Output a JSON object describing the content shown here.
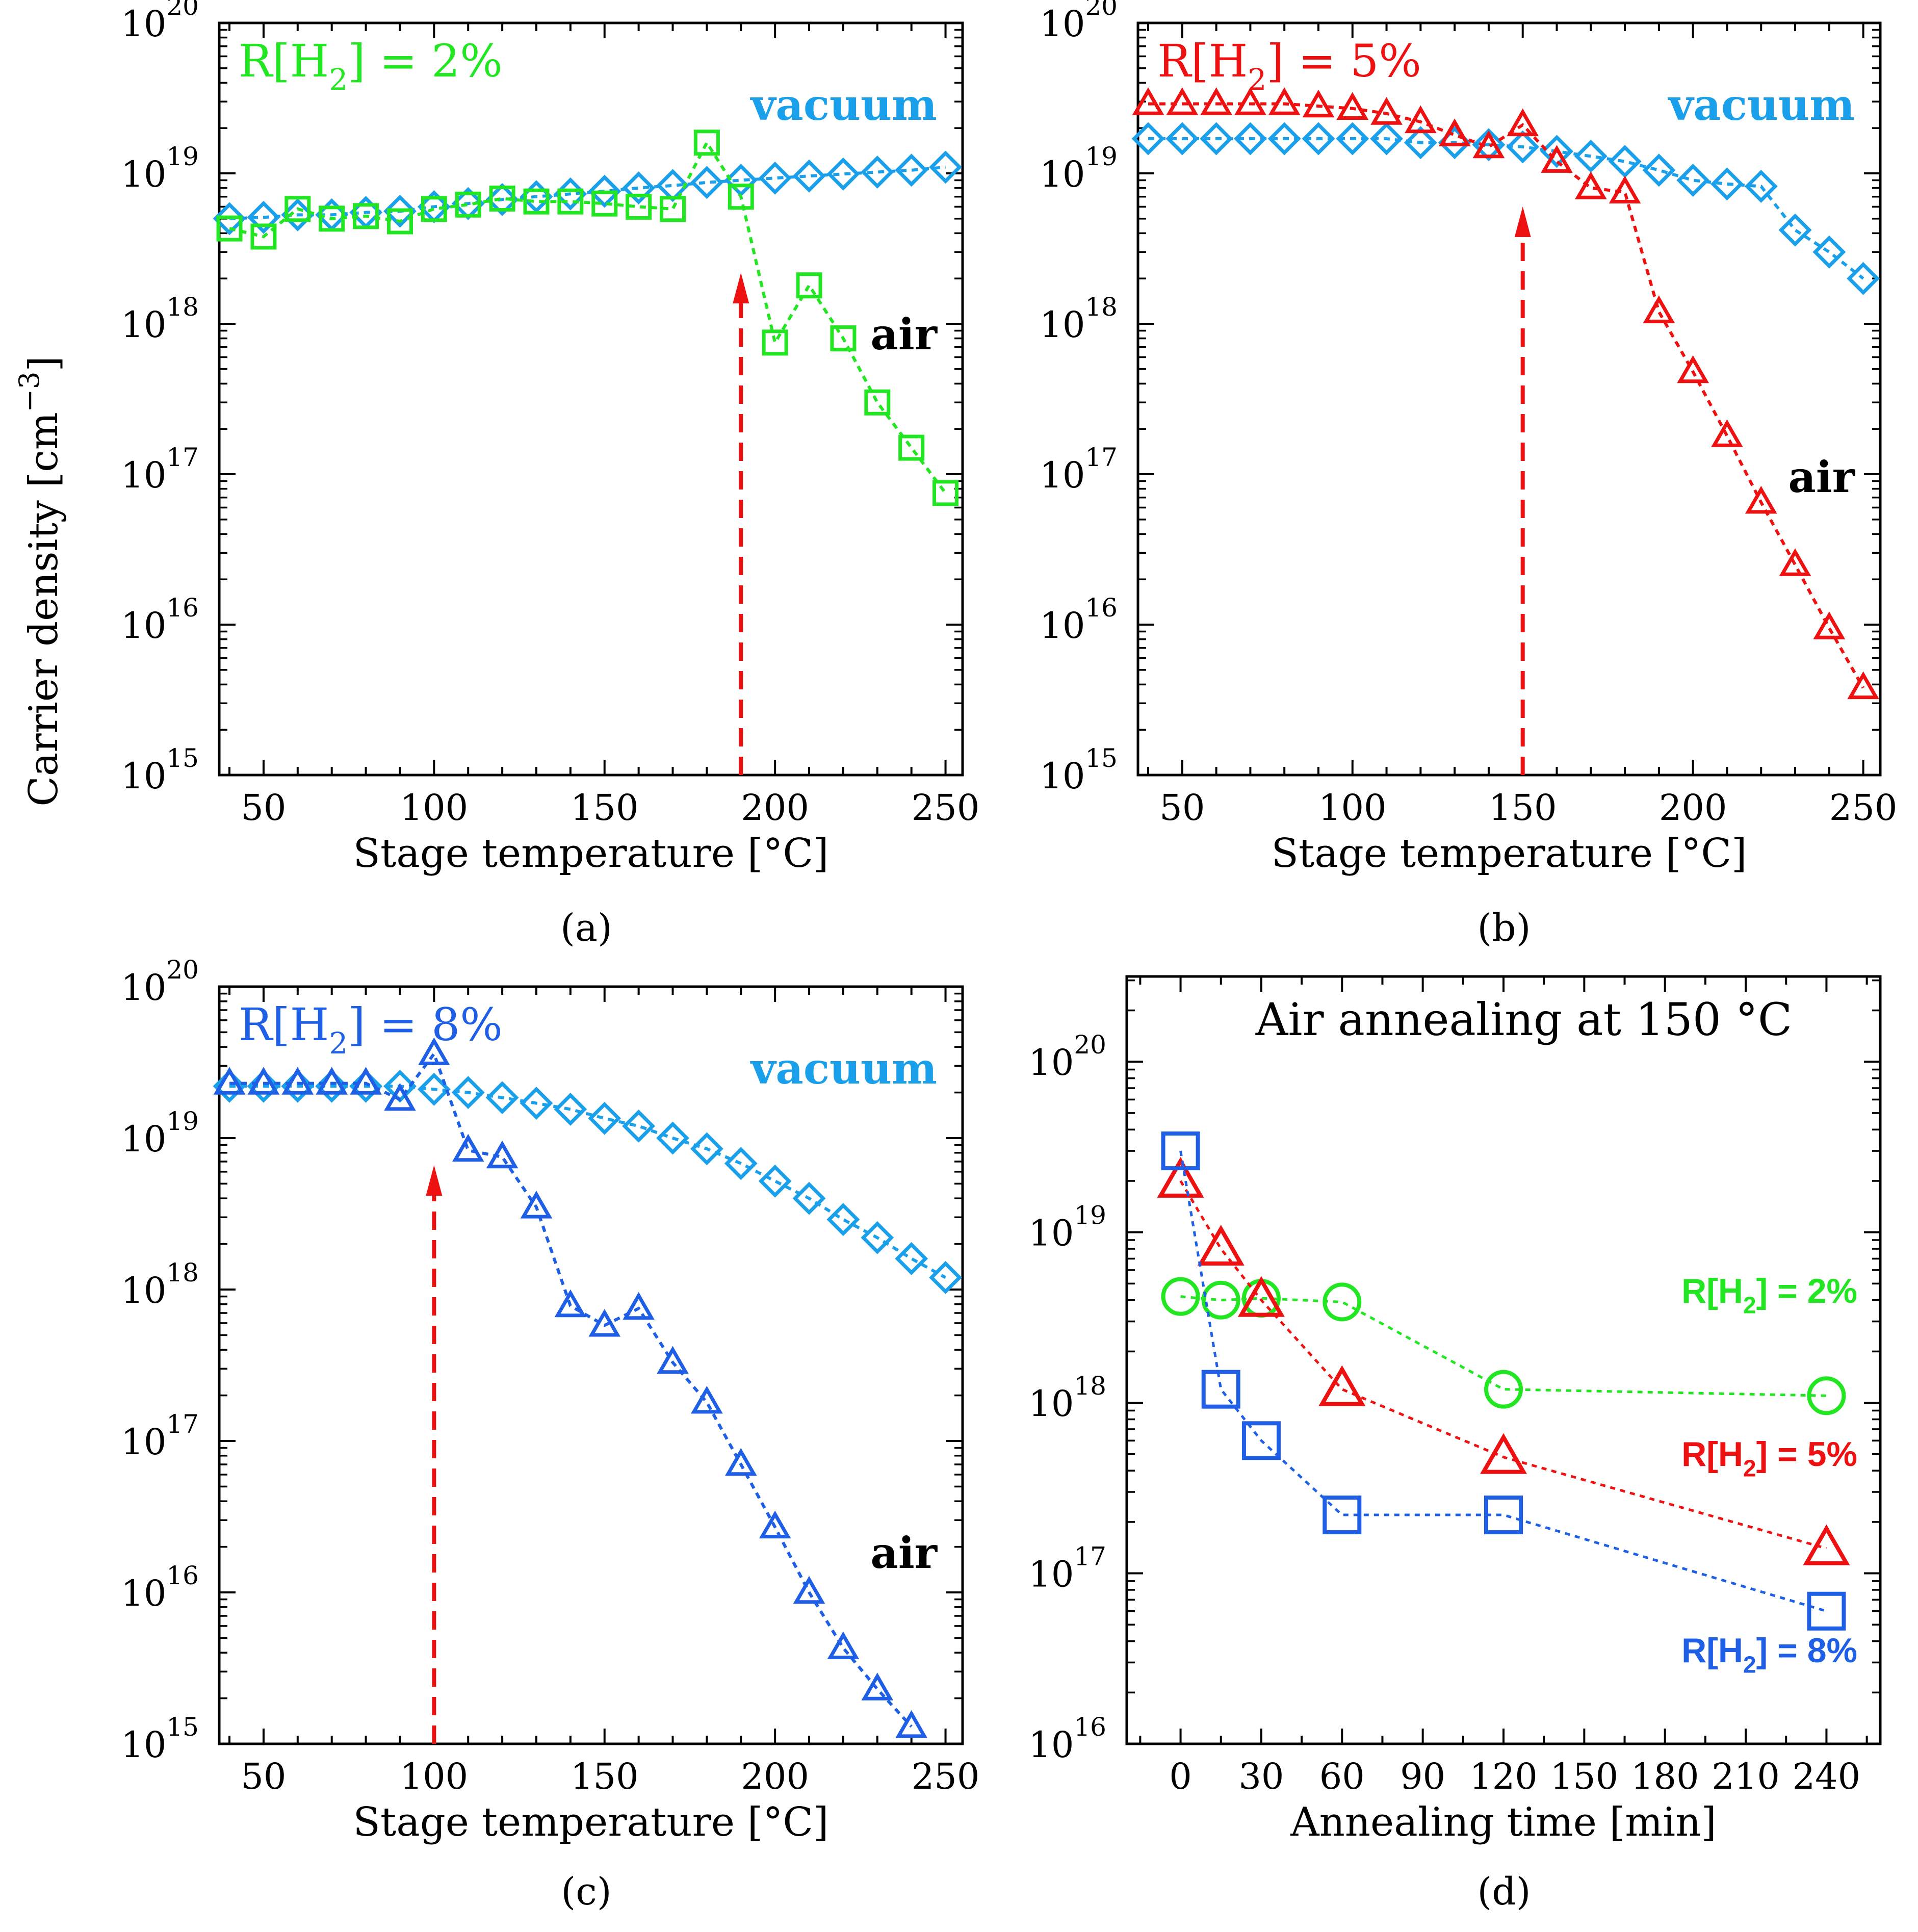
{
  "figure": {
    "ylabel": "Carrier density [cm",
    "ylabel_exp": "−3",
    "ylabel_end": "]",
    "colors": {
      "green": "#22e622",
      "red": "#ee1111",
      "blue": "#1f5fe6",
      "lightblue": "#1aa0ea",
      "arrow": "#ee1111"
    }
  },
  "chart_data": [
    {
      "id": "a",
      "type": "scatter",
      "caption": "(a)",
      "xlabel": "Stage temperature [°C]",
      "ylabel": "Carrier density [cm−3]",
      "xlim": [
        37,
        255
      ],
      "ylim_log10": [
        15,
        20
      ],
      "xticks": [
        50,
        100,
        150,
        200,
        250
      ],
      "ytick_exponents": [
        15,
        16,
        17,
        18,
        19,
        20
      ],
      "ytick_base": "10",
      "title_prefix": "R[H",
      "title_sub": "2",
      "title_suffix": "] = 2%",
      "arrow_x": 190,
      "label_vacuum": "vacuum",
      "label_air": "air",
      "series": [
        {
          "name": "vacuum",
          "color": "lightblue",
          "marker": "diamond",
          "x": [
            40,
            50,
            60,
            70,
            80,
            90,
            100,
            110,
            120,
            130,
            140,
            150,
            160,
            170,
            180,
            190,
            200,
            210,
            220,
            230,
            240,
            250
          ],
          "y": [
            5e+18,
            5.1e+18,
            5.3e+18,
            5.3e+18,
            5.5e+18,
            5.6e+18,
            6e+18,
            6.3e+18,
            6.7e+18,
            7e+18,
            7.3e+18,
            7.6e+18,
            8e+18,
            8.3e+18,
            8.7e+18,
            9e+18,
            9.3e+18,
            9.6e+18,
            9.9e+18,
            1.02e+19,
            1.05e+19,
            1.1e+19
          ]
        },
        {
          "name": "air",
          "color": "green",
          "marker": "square",
          "x": [
            40,
            50,
            60,
            70,
            80,
            90,
            100,
            110,
            120,
            130,
            140,
            150,
            160,
            170,
            180,
            190,
            200,
            210,
            220,
            230,
            240,
            250
          ],
          "y": [
            4.3e+18,
            3.8e+18,
            5.8e+18,
            5e+18,
            5.2e+18,
            4.8e+18,
            5.8e+18,
            6.2e+18,
            6.8e+18,
            6.5e+18,
            6.5e+18,
            6.3e+18,
            6e+18,
            5.8e+18,
            1.6e+19,
            7e+18,
            7.5e+17,
            1.8e+18,
            8e+17,
            3e+17,
            1.5e+17,
            7.5e+16
          ]
        }
      ]
    },
    {
      "id": "b",
      "type": "scatter",
      "caption": "(b)",
      "xlabel": "Stage temperature [°C]",
      "ylabel": "Carrier density [cm−3]",
      "xlim": [
        37,
        255
      ],
      "ylim_log10": [
        15,
        20
      ],
      "xticks": [
        50,
        100,
        150,
        200,
        250
      ],
      "ytick_exponents": [
        15,
        16,
        17,
        18,
        19,
        20
      ],
      "ytick_base": "10",
      "title_prefix": "R[H",
      "title_sub": "2",
      "title_suffix": "] = 5%",
      "arrow_x": 150,
      "label_vacuum": "vacuum",
      "label_air": "air",
      "series": [
        {
          "name": "vacuum",
          "color": "lightblue",
          "marker": "diamond",
          "x": [
            40,
            50,
            60,
            70,
            80,
            90,
            100,
            110,
            120,
            130,
            140,
            150,
            160,
            170,
            180,
            190,
            200,
            210,
            220,
            230,
            240,
            250
          ],
          "y": [
            1.7e+19,
            1.7e+19,
            1.7e+19,
            1.7e+19,
            1.7e+19,
            1.7e+19,
            1.7e+19,
            1.7e+19,
            1.6e+19,
            1.6e+19,
            1.55e+19,
            1.5e+19,
            1.4e+19,
            1.3e+19,
            1.2e+19,
            1.05e+19,
            9e+18,
            8.5e+18,
            8.2e+18,
            4.2e+18,
            3e+18,
            2e+18
          ]
        },
        {
          "name": "air",
          "color": "red",
          "marker": "triangle",
          "x": [
            40,
            50,
            60,
            70,
            80,
            90,
            100,
            110,
            120,
            130,
            140,
            150,
            160,
            170,
            180,
            190,
            200,
            210,
            220,
            230,
            240,
            250
          ],
          "y": [
            2.9e+19,
            2.9e+19,
            2.9e+19,
            2.9e+19,
            2.9e+19,
            2.8e+19,
            2.7e+19,
            2.5e+19,
            2.2e+19,
            1.8e+19,
            1.5e+19,
            2.1e+19,
            1.2e+19,
            8e+18,
            7.5e+18,
            1.2e+18,
            4.8e+17,
            1.8e+17,
            6.5e+16,
            2.5e+16,
            9500000000000000.0,
            3800000000000000.0
          ]
        }
      ]
    },
    {
      "id": "c",
      "type": "scatter",
      "caption": "(c)",
      "xlabel": "Stage temperature [°C]",
      "ylabel": "Carrier density [cm−3]",
      "xlim": [
        37,
        255
      ],
      "ylim_log10": [
        15,
        20
      ],
      "xticks": [
        50,
        100,
        150,
        200,
        250
      ],
      "ytick_exponents": [
        15,
        16,
        17,
        18,
        19,
        20
      ],
      "ytick_base": "10",
      "title_prefix": "R[H",
      "title_sub": "2",
      "title_suffix": "] = 8%",
      "arrow_x": 100,
      "label_vacuum": "vacuum",
      "label_air": "air",
      "series": [
        {
          "name": "vacuum",
          "color": "lightblue",
          "marker": "diamond",
          "x": [
            40,
            50,
            60,
            70,
            80,
            90,
            100,
            110,
            120,
            130,
            140,
            150,
            160,
            170,
            180,
            190,
            200,
            210,
            220,
            230,
            240,
            250
          ],
          "y": [
            2.2e+19,
            2.2e+19,
            2.2e+19,
            2.2e+19,
            2.2e+19,
            2.2e+19,
            2.1e+19,
            2e+19,
            1.85e+19,
            1.7e+19,
            1.55e+19,
            1.35e+19,
            1.2e+19,
            1e+19,
            8.5e+18,
            6.8e+18,
            5.2e+18,
            4e+18,
            2.9e+18,
            2.2e+18,
            1.6e+18,
            1.2e+18
          ]
        },
        {
          "name": "air",
          "color": "blue",
          "marker": "triangle",
          "x": [
            40,
            50,
            60,
            70,
            80,
            90,
            100,
            110,
            120,
            130,
            140,
            150,
            160,
            170,
            180,
            190,
            200,
            210,
            220,
            230,
            240
          ],
          "y": [
            2.3e+19,
            2.3e+19,
            2.3e+19,
            2.3e+19,
            2.3e+19,
            1.8e+19,
            3.6e+19,
            8.3e+18,
            7.5e+18,
            3.5e+18,
            7.8e+17,
            5.8e+17,
            7.5e+17,
            3.3e+17,
            1.8e+17,
            7e+16,
            2.7e+16,
            1e+16,
            4300000000000000.0,
            2300000000000000.0,
            1300000000000000.0
          ]
        }
      ]
    },
    {
      "id": "d",
      "type": "line",
      "caption": "(d)",
      "title": "Air annealing at 150 °C",
      "xlabel": "Annealing time [min]",
      "ylabel": "Carrier density [cm−3]",
      "xlim": [
        -20,
        260
      ],
      "ylim_log10": [
        16,
        20.5
      ],
      "xticks": [
        0,
        30,
        60,
        90,
        120,
        150,
        180,
        210,
        240
      ],
      "ytick_exponents": [
        16,
        17,
        18,
        19,
        20
      ],
      "ytick_base": "10",
      "series": [
        {
          "name": "R[H2] = 2%",
          "label_prefix": "R[H",
          "label_sub": "2",
          "label_suffix": "] = 2%",
          "color": "green",
          "marker": "circle",
          "x": [
            0,
            15,
            30,
            60,
            120,
            240
          ],
          "y": [
            4.2e+18,
            4e+18,
            4.1e+18,
            3.9e+18,
            1.2e+18,
            1.1e+18
          ]
        },
        {
          "name": "R[H2] = 5%",
          "label_prefix": "R[H",
          "label_sub": "2",
          "label_suffix": "] = 5%",
          "color": "red",
          "marker": "triangle",
          "x": [
            0,
            15,
            30,
            60,
            120,
            240
          ],
          "y": [
            2e+19,
            8e+18,
            4e+18,
            1.2e+18,
            4.8e+17,
            1.4e+17
          ]
        },
        {
          "name": "R[H2] = 8%",
          "label_prefix": "R[H",
          "label_sub": "2",
          "label_suffix": "] = 8%",
          "color": "blue",
          "marker": "square",
          "x": [
            0,
            15,
            30,
            60,
            120,
            240
          ],
          "y": [
            3e+19,
            1.2e+18,
            6e+17,
            2.2e+17,
            2.2e+17,
            6e+16
          ]
        }
      ]
    }
  ]
}
